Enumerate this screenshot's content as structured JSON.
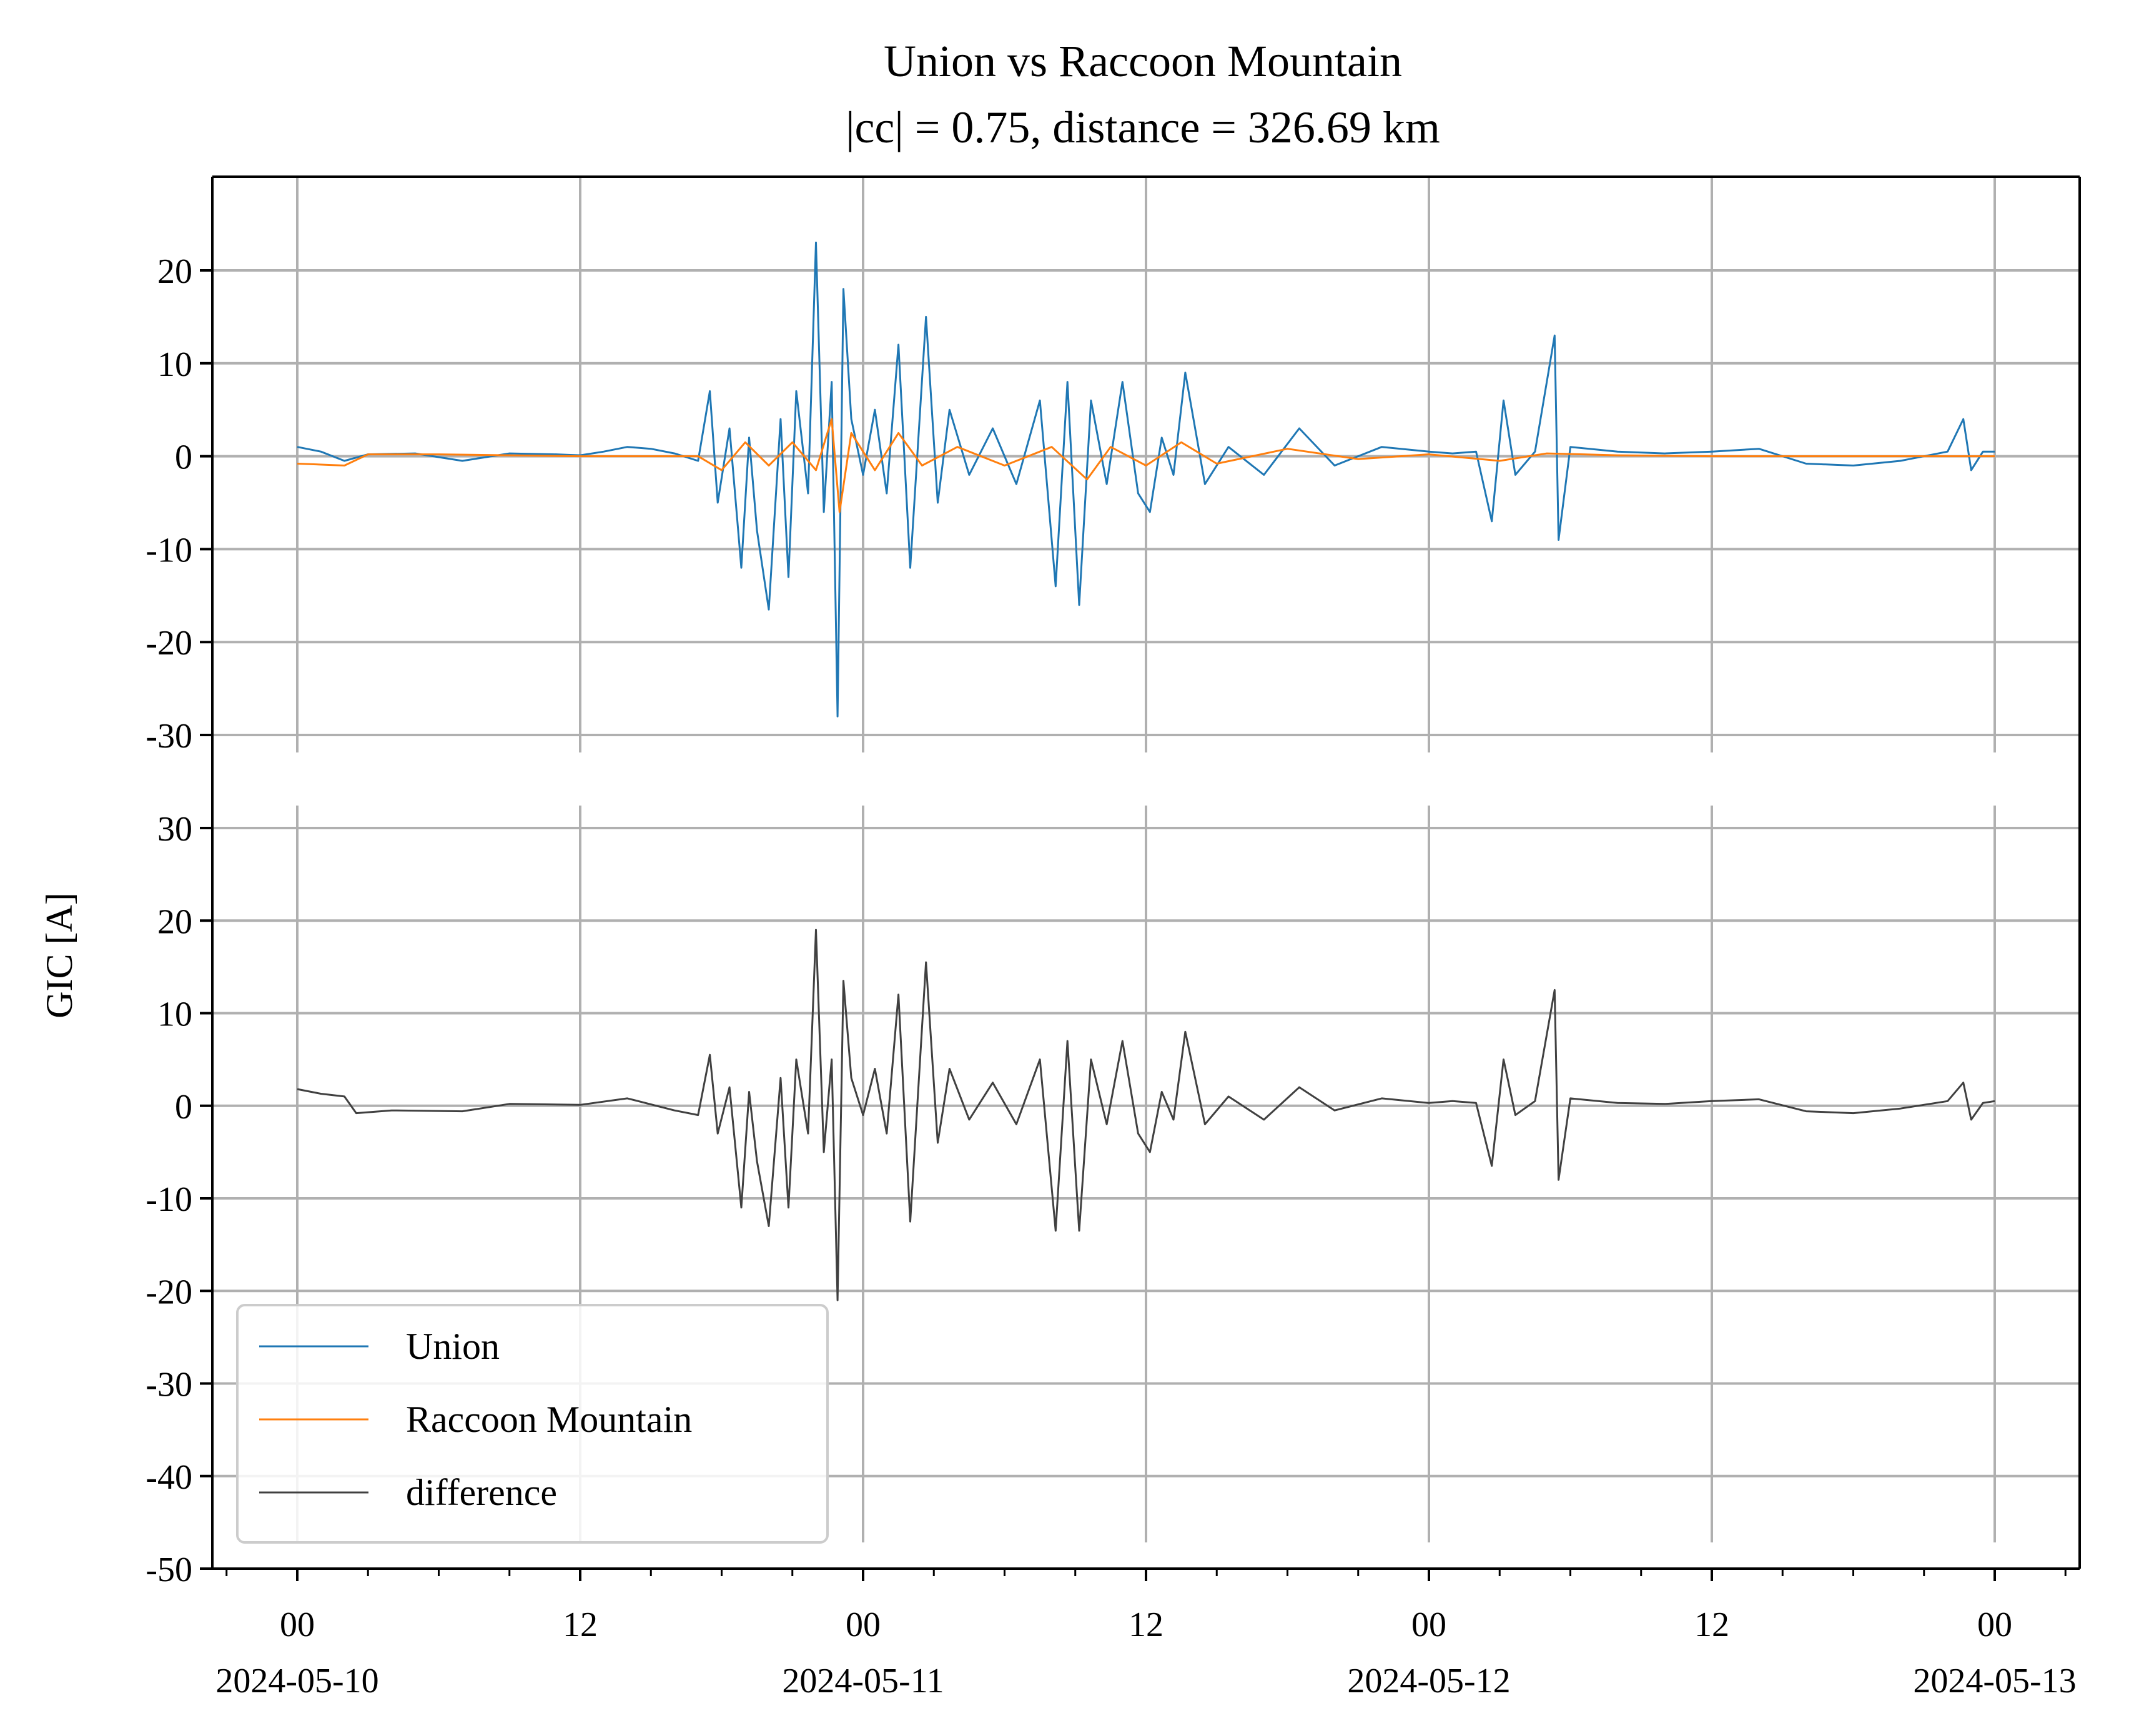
{
  "chart_data": {
    "type": "line",
    "title": "Union vs Raccoon Mountain",
    "subtitle": "|cc| = 0.75, distance = 326.69 km",
    "ylabel": "GIC [A]",
    "xlabel": "",
    "grid": true,
    "legend_position": "lower-left",
    "x_range": [
      "2024-05-10 00:00",
      "2024-05-13 00:00"
    ],
    "x_ticks": [
      {
        "time": "2024-05-10 00:00",
        "label": "00",
        "date": "2024-05-10"
      },
      {
        "time": "2024-05-10 12:00",
        "label": "12",
        "date": ""
      },
      {
        "time": "2024-05-11 00:00",
        "label": "00",
        "date": "2024-05-11"
      },
      {
        "time": "2024-05-11 12:00",
        "label": "12",
        "date": ""
      },
      {
        "time": "2024-05-12 00:00",
        "label": "00",
        "date": "2024-05-12"
      },
      {
        "time": "2024-05-12 12:00",
        "label": "12",
        "date": ""
      },
      {
        "time": "2024-05-13 00:00",
        "label": "00",
        "date": "2024-05-13"
      }
    ],
    "panels": [
      {
        "id": "top",
        "ylim": [
          -30,
          30
        ],
        "yticks": [
          20,
          10,
          0,
          -10,
          -20,
          -30
        ],
        "series": [
          {
            "name": "Union",
            "color": "#1f77b4",
            "points": [
              [
                "2024-05-10 00:00",
                1.0
              ],
              [
                "2024-05-10 01:00",
                0.5
              ],
              [
                "2024-05-10 02:00",
                -0.5
              ],
              [
                "2024-05-10 03:00",
                0.2
              ],
              [
                "2024-05-10 05:00",
                0.3
              ],
              [
                "2024-05-10 07:00",
                -0.5
              ],
              [
                "2024-05-10 09:00",
                0.3
              ],
              [
                "2024-05-10 11:00",
                0.2
              ],
              [
                "2024-05-10 12:00",
                0.1
              ],
              [
                "2024-05-10 13:00",
                0.5
              ],
              [
                "2024-05-10 14:00",
                1.0
              ],
              [
                "2024-05-10 15:00",
                0.8
              ],
              [
                "2024-05-10 16:00",
                0.3
              ],
              [
                "2024-05-10 17:00",
                -0.5
              ],
              [
                "2024-05-10 17:30",
                7.0
              ],
              [
                "2024-05-10 17:50",
                -5.0
              ],
              [
                "2024-05-10 18:20",
                3.0
              ],
              [
                "2024-05-10 18:50",
                -12.0
              ],
              [
                "2024-05-10 19:10",
                2.0
              ],
              [
                "2024-05-10 19:30",
                -8.0
              ],
              [
                "2024-05-10 20:00",
                -16.5
              ],
              [
                "2024-05-10 20:30",
                4.0
              ],
              [
                "2024-05-10 20:50",
                -13.0
              ],
              [
                "2024-05-10 21:10",
                7.0
              ],
              [
                "2024-05-10 21:40",
                -4.0
              ],
              [
                "2024-05-10 22:00",
                23.0
              ],
              [
                "2024-05-10 22:20",
                -6.0
              ],
              [
                "2024-05-10 22:40",
                8.0
              ],
              [
                "2024-05-10 22:55",
                -28.0
              ],
              [
                "2024-05-10 23:10",
                18.0
              ],
              [
                "2024-05-10 23:30",
                4.0
              ],
              [
                "2024-05-11 00:00",
                -2.0
              ],
              [
                "2024-05-11 00:30",
                5.0
              ],
              [
                "2024-05-11 01:00",
                -4.0
              ],
              [
                "2024-05-11 01:30",
                12.0
              ],
              [
                "2024-05-11 02:00",
                -12.0
              ],
              [
                "2024-05-11 02:40",
                15.0
              ],
              [
                "2024-05-11 03:10",
                -5.0
              ],
              [
                "2024-05-11 03:40",
                5.0
              ],
              [
                "2024-05-11 04:30",
                -2.0
              ],
              [
                "2024-05-11 05:30",
                3.0
              ],
              [
                "2024-05-11 06:30",
                -3.0
              ],
              [
                "2024-05-11 07:30",
                6.0
              ],
              [
                "2024-05-11 08:10",
                -14.0
              ],
              [
                "2024-05-11 08:40",
                8.0
              ],
              [
                "2024-05-11 09:10",
                -16.0
              ],
              [
                "2024-05-11 09:40",
                6.0
              ],
              [
                "2024-05-11 10:20",
                -3.0
              ],
              [
                "2024-05-11 11:00",
                8.0
              ],
              [
                "2024-05-11 11:40",
                -4.0
              ],
              [
                "2024-05-11 12:10",
                -6.0
              ],
              [
                "2024-05-11 12:40",
                2.0
              ],
              [
                "2024-05-11 13:10",
                -2.0
              ],
              [
                "2024-05-11 13:40",
                9.0
              ],
              [
                "2024-05-11 14:30",
                -3.0
              ],
              [
                "2024-05-11 15:30",
                1.0
              ],
              [
                "2024-05-11 17:00",
                -2.0
              ],
              [
                "2024-05-11 18:30",
                3.0
              ],
              [
                "2024-05-11 20:00",
                -1.0
              ],
              [
                "2024-05-11 22:00",
                1.0
              ],
              [
                "2024-05-12 00:00",
                0.5
              ],
              [
                "2024-05-12 01:00",
                0.3
              ],
              [
                "2024-05-12 02:00",
                0.5
              ],
              [
                "2024-05-12 02:40",
                -7.0
              ],
              [
                "2024-05-12 03:10",
                6.0
              ],
              [
                "2024-05-12 03:40",
                -2.0
              ],
              [
                "2024-05-12 04:30",
                0.5
              ],
              [
                "2024-05-12 05:20",
                13.0
              ],
              [
                "2024-05-12 05:30",
                -9.0
              ],
              [
                "2024-05-12 06:00",
                1.0
              ],
              [
                "2024-05-12 08:00",
                0.5
              ],
              [
                "2024-05-12 10:00",
                0.3
              ],
              [
                "2024-05-12 12:00",
                0.5
              ],
              [
                "2024-05-12 14:00",
                0.8
              ],
              [
                "2024-05-12 16:00",
                -0.8
              ],
              [
                "2024-05-12 18:00",
                -1.0
              ],
              [
                "2024-05-12 20:00",
                -0.5
              ],
              [
                "2024-05-12 22:00",
                0.5
              ],
              [
                "2024-05-12 22:40",
                4.0
              ],
              [
                "2024-05-12 23:00",
                -1.5
              ],
              [
                "2024-05-12 23:30",
                0.5
              ],
              [
                "2024-05-13 00:00",
                0.5
              ]
            ]
          },
          {
            "name": "Raccoon Mountain",
            "color": "#ff7f0e",
            "points": [
              [
                "2024-05-10 00:00",
                -0.8
              ],
              [
                "2024-05-10 02:00",
                -1.0
              ],
              [
                "2024-05-10 03:00",
                0.2
              ],
              [
                "2024-05-10 06:00",
                0.2
              ],
              [
                "2024-05-10 12:00",
                0.0
              ],
              [
                "2024-05-10 17:00",
                0.0
              ],
              [
                "2024-05-10 18:00",
                -1.5
              ],
              [
                "2024-05-10 19:00",
                1.5
              ],
              [
                "2024-05-10 20:00",
                -1.0
              ],
              [
                "2024-05-10 21:00",
                1.5
              ],
              [
                "2024-05-10 22:00",
                -1.5
              ],
              [
                "2024-05-10 22:40",
                4.0
              ],
              [
                "2024-05-10 23:00",
                -6.0
              ],
              [
                "2024-05-10 23:30",
                2.5
              ],
              [
                "2024-05-11 00:30",
                -1.5
              ],
              [
                "2024-05-11 01:30",
                2.5
              ],
              [
                "2024-05-11 02:30",
                -1.0
              ],
              [
                "2024-05-11 04:00",
                1.0
              ],
              [
                "2024-05-11 06:00",
                -1.0
              ],
              [
                "2024-05-11 08:00",
                1.0
              ],
              [
                "2024-05-11 09:30",
                -2.5
              ],
              [
                "2024-05-11 10:30",
                1.0
              ],
              [
                "2024-05-11 12:00",
                -1.0
              ],
              [
                "2024-05-11 13:30",
                1.5
              ],
              [
                "2024-05-11 15:00",
                -0.8
              ],
              [
                "2024-05-11 18:00",
                0.8
              ],
              [
                "2024-05-11 21:00",
                -0.3
              ],
              [
                "2024-05-12 00:00",
                0.2
              ],
              [
                "2024-05-12 03:00",
                -0.5
              ],
              [
                "2024-05-12 05:00",
                0.3
              ],
              [
                "2024-05-12 08:00",
                0.1
              ],
              [
                "2024-05-12 12:00",
                0.0
              ],
              [
                "2024-05-12 18:00",
                0.0
              ],
              [
                "2024-05-13 00:00",
                0.0
              ]
            ]
          }
        ]
      },
      {
        "id": "bottom",
        "ylim": [
          -50,
          32
        ],
        "yticks": [
          30,
          20,
          10,
          0,
          -10,
          -20,
          -30,
          -40,
          -50
        ],
        "series": [
          {
            "name": "difference",
            "color": "#404040",
            "points": [
              [
                "2024-05-10 00:00",
                1.8
              ],
              [
                "2024-05-10 01:00",
                1.3
              ],
              [
                "2024-05-10 02:00",
                1.0
              ],
              [
                "2024-05-10 02:30",
                -0.8
              ],
              [
                "2024-05-10 04:00",
                -0.5
              ],
              [
                "2024-05-10 07:00",
                -0.6
              ],
              [
                "2024-05-10 09:00",
                0.2
              ],
              [
                "2024-05-10 12:00",
                0.1
              ],
              [
                "2024-05-10 14:00",
                0.8
              ],
              [
                "2024-05-10 16:00",
                -0.5
              ],
              [
                "2024-05-10 17:00",
                -1.0
              ],
              [
                "2024-05-10 17:30",
                5.5
              ],
              [
                "2024-05-10 17:50",
                -3.0
              ],
              [
                "2024-05-10 18:20",
                2.0
              ],
              [
                "2024-05-10 18:50",
                -11.0
              ],
              [
                "2024-05-10 19:10",
                1.5
              ],
              [
                "2024-05-10 19:30",
                -6.0
              ],
              [
                "2024-05-10 20:00",
                -13.0
              ],
              [
                "2024-05-10 20:30",
                3.0
              ],
              [
                "2024-05-10 20:50",
                -11.0
              ],
              [
                "2024-05-10 21:10",
                5.0
              ],
              [
                "2024-05-10 21:40",
                -3.0
              ],
              [
                "2024-05-10 22:00",
                19.0
              ],
              [
                "2024-05-10 22:20",
                -5.0
              ],
              [
                "2024-05-10 22:40",
                5.0
              ],
              [
                "2024-05-10 22:55",
                -21.0
              ],
              [
                "2024-05-10 23:10",
                13.5
              ],
              [
                "2024-05-10 23:30",
                3.0
              ],
              [
                "2024-05-11 00:00",
                -1.0
              ],
              [
                "2024-05-11 00:30",
                4.0
              ],
              [
                "2024-05-11 01:00",
                -3.0
              ],
              [
                "2024-05-11 01:30",
                12.0
              ],
              [
                "2024-05-11 02:00",
                -12.5
              ],
              [
                "2024-05-11 02:40",
                15.5
              ],
              [
                "2024-05-11 03:10",
                -4.0
              ],
              [
                "2024-05-11 03:40",
                4.0
              ],
              [
                "2024-05-11 04:30",
                -1.5
              ],
              [
                "2024-05-11 05:30",
                2.5
              ],
              [
                "2024-05-11 06:30",
                -2.0
              ],
              [
                "2024-05-11 07:30",
                5.0
              ],
              [
                "2024-05-11 08:10",
                -13.5
              ],
              [
                "2024-05-11 08:40",
                7.0
              ],
              [
                "2024-05-11 09:10",
                -13.5
              ],
              [
                "2024-05-11 09:40",
                5.0
              ],
              [
                "2024-05-11 10:20",
                -2.0
              ],
              [
                "2024-05-11 11:00",
                7.0
              ],
              [
                "2024-05-11 11:40",
                -3.0
              ],
              [
                "2024-05-11 12:10",
                -5.0
              ],
              [
                "2024-05-11 12:40",
                1.5
              ],
              [
                "2024-05-11 13:10",
                -1.5
              ],
              [
                "2024-05-11 13:40",
                8.0
              ],
              [
                "2024-05-11 14:30",
                -2.0
              ],
              [
                "2024-05-11 15:30",
                1.0
              ],
              [
                "2024-05-11 17:00",
                -1.5
              ],
              [
                "2024-05-11 18:30",
                2.0
              ],
              [
                "2024-05-11 20:00",
                -0.5
              ],
              [
                "2024-05-11 22:00",
                0.8
              ],
              [
                "2024-05-12 00:00",
                0.3
              ],
              [
                "2024-05-12 01:00",
                0.5
              ],
              [
                "2024-05-12 02:00",
                0.3
              ],
              [
                "2024-05-12 02:40",
                -6.5
              ],
              [
                "2024-05-12 03:10",
                5.0
              ],
              [
                "2024-05-12 03:40",
                -1.0
              ],
              [
                "2024-05-12 04:30",
                0.5
              ],
              [
                "2024-05-12 05:20",
                12.5
              ],
              [
                "2024-05-12 05:30",
                -8.0
              ],
              [
                "2024-05-12 06:00",
                0.8
              ],
              [
                "2024-05-12 08:00",
                0.3
              ],
              [
                "2024-05-12 10:00",
                0.2
              ],
              [
                "2024-05-12 12:00",
                0.5
              ],
              [
                "2024-05-12 14:00",
                0.7
              ],
              [
                "2024-05-12 16:00",
                -0.6
              ],
              [
                "2024-05-12 18:00",
                -0.8
              ],
              [
                "2024-05-12 20:00",
                -0.3
              ],
              [
                "2024-05-12 22:00",
                0.5
              ],
              [
                "2024-05-12 22:40",
                2.5
              ],
              [
                "2024-05-12 23:00",
                -1.5
              ],
              [
                "2024-05-12 23:30",
                0.3
              ],
              [
                "2024-05-13 00:00",
                0.5
              ]
            ]
          }
        ]
      }
    ],
    "legend": [
      {
        "label": "Union",
        "color": "#1f77b4"
      },
      {
        "label": "Raccoon Mountain",
        "color": "#ff7f0e"
      },
      {
        "label": "difference",
        "color": "#404040"
      }
    ]
  }
}
